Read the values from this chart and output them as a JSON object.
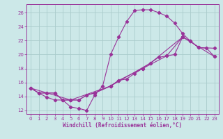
{
  "background_color": "#cce8e8",
  "grid_color": "#aacccc",
  "line_color": "#993399",
  "xlabel": "Windchill (Refroidissement éolien,°C)",
  "xlabel_color": "#993399",
  "tick_color": "#993399",
  "xlim": [
    -0.5,
    23.5
  ],
  "ylim": [
    11.5,
    27.2
  ],
  "yticks": [
    12,
    14,
    16,
    18,
    20,
    22,
    24,
    26
  ],
  "xticks": [
    0,
    1,
    2,
    3,
    4,
    5,
    6,
    7,
    8,
    9,
    10,
    11,
    12,
    13,
    14,
    15,
    16,
    17,
    18,
    19,
    20,
    21,
    22,
    23
  ],
  "line1_x": [
    0,
    1,
    2,
    3,
    4,
    5,
    6,
    7,
    8,
    9,
    10,
    11,
    12,
    13,
    14,
    15,
    16,
    17,
    18,
    19,
    20,
    21
  ],
  "line1_y": [
    15.2,
    14.5,
    13.9,
    13.5,
    13.5,
    12.5,
    12.3,
    12.0,
    14.2,
    15.5,
    20.0,
    22.5,
    24.7,
    26.3,
    26.4,
    26.4,
    26.0,
    25.5,
    24.5,
    23.0,
    21.9,
    21.0
  ],
  "line2_x": [
    0,
    1,
    2,
    3,
    4,
    5,
    6,
    7,
    8,
    10,
    11,
    12,
    13,
    14,
    15,
    16,
    17,
    18,
    19,
    20,
    21,
    23
  ],
  "line2_y": [
    15.2,
    14.5,
    14.5,
    14.5,
    13.5,
    13.5,
    13.5,
    14.2,
    14.5,
    15.5,
    16.3,
    16.5,
    17.3,
    18.0,
    18.8,
    19.6,
    19.8,
    20.0,
    22.5,
    21.9,
    21.0,
    20.9
  ],
  "line3_x": [
    0,
    1,
    2,
    3,
    4,
    5,
    6,
    7,
    8,
    10,
    11,
    14,
    17,
    19,
    20,
    21,
    22,
    23
  ],
  "line3_y": [
    15.2,
    14.5,
    14.5,
    14.5,
    13.5,
    13.5,
    13.5,
    14.2,
    14.5,
    15.5,
    16.3,
    18.0,
    19.8,
    22.5,
    21.9,
    21.0,
    20.9,
    19.7
  ],
  "line4_x": [
    0,
    5,
    10,
    15,
    19,
    23
  ],
  "line4_y": [
    15.2,
    13.5,
    15.5,
    18.8,
    22.5,
    19.7
  ]
}
